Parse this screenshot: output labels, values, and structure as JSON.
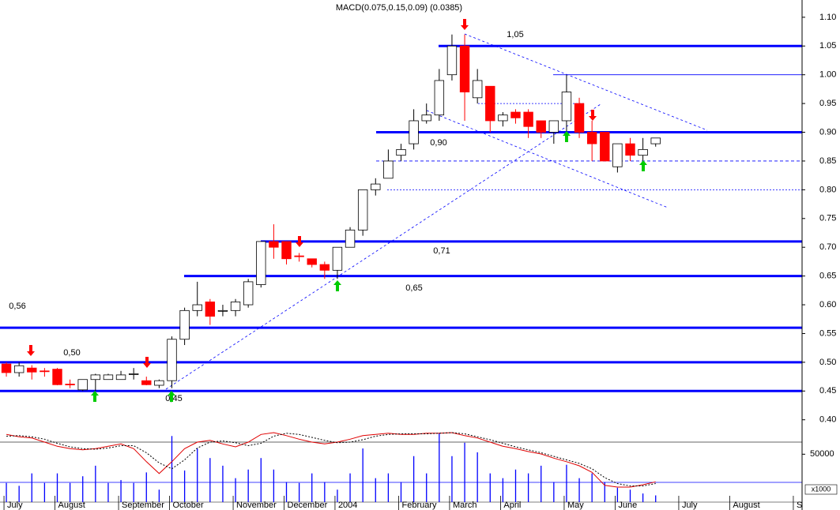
{
  "chart_data": {
    "type": "candlestick",
    "title": "MACD(0.075,0.15,0.09) (0.0385)",
    "categories": [
      "July",
      null,
      null,
      null,
      "August",
      null,
      null,
      null,
      null,
      "September",
      null,
      null,
      null,
      "October",
      null,
      null,
      null,
      null,
      "November",
      null,
      null,
      null,
      "December",
      null,
      null,
      null,
      "2004",
      null,
      null,
      null,
      null,
      "February",
      null,
      null,
      null,
      "March",
      null,
      null,
      null,
      "April",
      null,
      null,
      null,
      null,
      "May",
      null,
      null,
      null,
      "June",
      null,
      null,
      null,
      null,
      "July",
      null,
      null,
      null,
      "August",
      null,
      null,
      null,
      null,
      "S"
    ],
    "open": [
      0.497,
      0.482,
      0.49,
      0.485,
      0.488,
      0.462,
      0.452,
      0.47,
      0.47,
      0.47,
      0.48,
      0.468,
      0.46,
      0.468,
      0.54,
      0.59,
      0.605,
      0.59,
      0.59,
      0.6,
      0.635,
      0.71,
      0.71,
      0.685,
      0.68,
      0.67,
      0.66,
      0.7,
      0.73,
      0.8,
      0.82,
      0.86,
      0.88,
      0.92,
      0.93,
      1.0,
      1.05,
      0.96,
      0.98,
      0.92,
      0.935,
      0.935,
      0.92,
      0.9,
      0.92,
      0.95,
      0.9,
      0.9,
      0.84,
      0.88,
      0.86,
      0.88,
      null,
      null,
      null,
      null,
      null,
      null,
      null,
      null,
      null,
      null,
      null
    ],
    "high": [
      0.5,
      0.5,
      0.495,
      0.49,
      0.49,
      0.47,
      0.47,
      0.48,
      0.48,
      0.485,
      0.49,
      0.475,
      0.47,
      0.545,
      0.595,
      0.64,
      0.61,
      0.6,
      0.61,
      0.645,
      0.71,
      0.74,
      0.71,
      0.69,
      0.68,
      0.675,
      0.7,
      0.735,
      0.8,
      0.82,
      0.87,
      0.88,
      0.94,
      0.95,
      1.01,
      1.07,
      1.07,
      1.01,
      0.98,
      0.935,
      0.94,
      0.94,
      0.92,
      0.92,
      1.0,
      0.96,
      0.92,
      0.9,
      0.88,
      0.89,
      0.89,
      0.89,
      null,
      null,
      null,
      null,
      null,
      null,
      null,
      null,
      null,
      null,
      null
    ],
    "low": [
      0.475,
      0.475,
      0.47,
      0.475,
      0.46,
      0.455,
      0.45,
      0.45,
      0.47,
      0.47,
      0.47,
      0.46,
      0.455,
      0.455,
      0.53,
      0.58,
      0.565,
      0.58,
      0.58,
      0.595,
      0.63,
      0.68,
      0.67,
      0.675,
      0.665,
      0.645,
      0.645,
      0.7,
      0.72,
      0.79,
      0.82,
      0.85,
      0.87,
      0.915,
      0.92,
      0.99,
      0.92,
      0.95,
      0.9,
      0.91,
      0.915,
      0.89,
      0.89,
      0.88,
      0.9,
      0.89,
      0.85,
      0.85,
      0.83,
      0.85,
      0.85,
      0.875,
      null,
      null,
      null,
      null,
      null,
      null,
      null,
      null,
      null,
      null,
      null
    ],
    "close": [
      0.482,
      0.494,
      0.483,
      0.484,
      0.461,
      0.461,
      0.47,
      0.478,
      0.478,
      0.478,
      0.48,
      0.461,
      0.468,
      0.54,
      0.59,
      0.6,
      0.58,
      0.59,
      0.605,
      0.64,
      0.71,
      0.7,
      0.68,
      0.684,
      0.67,
      0.66,
      0.7,
      0.73,
      0.8,
      0.81,
      0.85,
      0.87,
      0.92,
      0.93,
      0.99,
      1.05,
      0.97,
      0.99,
      0.92,
      0.93,
      0.925,
      0.91,
      0.9,
      0.92,
      0.97,
      0.9,
      0.88,
      0.85,
      0.88,
      0.86,
      0.87,
      0.89,
      null,
      null,
      null,
      null,
      null,
      null,
      null,
      null,
      null,
      null,
      null
    ],
    "up_color": "#ffffff",
    "down_color": "#ff0000",
    "ylim": [
      0.39,
      1.13
    ],
    "yticks": [
      {
        "value": 0.4,
        "label": "0.40"
      },
      0.45,
      {
        "value": 0.5,
        "label": "0.50"
      },
      0.55,
      {
        "value": 0.6,
        "label": "0.60"
      },
      0.65,
      {
        "value": 0.7,
        "label": "0.70"
      },
      0.75,
      {
        "value": 0.8,
        "label": "0.80"
      },
      0.85,
      {
        "value": 0.9,
        "label": "0.90"
      },
      0.95,
      {
        "value": 1.0,
        "label": "1.00"
      },
      1.05,
      {
        "value": 1.1,
        "label": "1.10"
      }
    ],
    "level_color": "#0000ff",
    "levels": [
      {
        "value": 1.05,
        "label": "1,05"
      },
      {
        "value": 0.9,
        "label": "0,90"
      },
      {
        "value": 0.71,
        "label": "0,71"
      },
      {
        "value": 0.65,
        "label": "0,65"
      },
      {
        "value": 0.56,
        "label": "0,56"
      },
      {
        "value": 0.5,
        "label": "0,50"
      },
      {
        "value": 0.45,
        "label": "0,45"
      }
    ],
    "support_lines": [
      {
        "value": 1.0,
        "style": "solid"
      },
      {
        "value": 0.95,
        "style": "dotted"
      },
      {
        "value": 0.85,
        "style": "dashed"
      },
      {
        "value": 0.8,
        "style": "dotted"
      }
    ],
    "volume": {
      "color": "#0000ff",
      "ylim": [
        0,
        75000
      ],
      "yticks": [
        50000
      ],
      "unit_label": "x1000",
      "values": [
        20000,
        17000,
        30000,
        20000,
        30000,
        20000,
        27000,
        38000,
        20000,
        23000,
        20000,
        31000,
        13000,
        69000,
        33000,
        56000,
        46000,
        38000,
        25000,
        34000,
        46000,
        34000,
        21000,
        20000,
        30000,
        21000,
        13000,
        30000,
        56000,
        25000,
        30000,
        21000,
        48000,
        30000,
        72000,
        48000,
        62000,
        52000,
        30000,
        25000,
        34000,
        30000,
        38000,
        21000,
        39000,
        25000,
        30000,
        21000,
        15000,
        13000,
        9000,
        7000,
        null,
        null,
        null,
        null,
        null,
        null,
        null,
        null,
        null,
        null,
        null
      ]
    },
    "stochastic": {
      "ylim": [
        0,
        100
      ],
      "series": [
        {
          "color": "#e00000",
          "style": "solid",
          "values": [
            93,
            89,
            87,
            80,
            73,
            69,
            67,
            69,
            73,
            77,
            69,
            47,
            27,
            47,
            69,
            80,
            83,
            77,
            72,
            80,
            93,
            96,
            91,
            85,
            80,
            77,
            80,
            85,
            91,
            93,
            95,
            93,
            93,
            95,
            95,
            96,
            91,
            87,
            80,
            73,
            69,
            64,
            60,
            53,
            47,
            40,
            29,
            7,
            4,
            4,
            8,
            13,
            null,
            null,
            null,
            null,
            null,
            null,
            null,
            null,
            null,
            null,
            null
          ]
        },
        {
          "color": "#000000",
          "style": "dotted",
          "values": [
            90,
            91,
            89,
            85,
            78,
            72,
            69,
            68,
            70,
            74,
            74,
            62,
            45,
            35,
            50,
            70,
            80,
            82,
            79,
            74,
            78,
            90,
            95,
            93,
            88,
            83,
            79,
            80,
            84,
            90,
            93,
            94,
            94,
            94,
            95,
            96,
            94,
            89,
            84,
            78,
            72,
            67,
            62,
            56,
            50,
            44,
            35,
            20,
            10,
            6,
            6,
            10,
            null,
            null,
            null,
            null,
            null,
            null,
            null,
            null,
            null,
            null,
            null
          ]
        }
      ]
    }
  }
}
